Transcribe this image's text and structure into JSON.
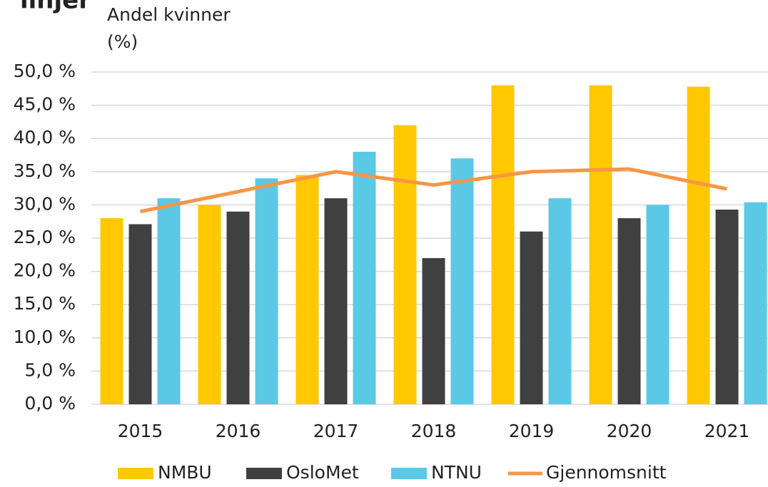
{
  "chart_data": {
    "type": "bar",
    "title": "linjer",
    "ylabel": [
      "Andel kvinner",
      "(%)"
    ],
    "categories": [
      "2015",
      "2016",
      "2017",
      "2018",
      "2019",
      "2020",
      "2021"
    ],
    "series": [
      {
        "name": "NMBU",
        "color": "#ffc800",
        "type": "bar",
        "values": [
          28,
          30,
          34.5,
          42,
          48,
          48,
          47.8
        ]
      },
      {
        "name": "OsloMet",
        "color": "#404040",
        "type": "bar",
        "values": [
          27.1,
          29,
          31,
          22,
          26,
          28,
          29.3
        ]
      },
      {
        "name": "NTNU",
        "color": "#5bc8e6",
        "type": "bar",
        "values": [
          31,
          34,
          38,
          37,
          31,
          30,
          30.4
        ]
      },
      {
        "name": "Gjennomsnitt",
        "color": "#f79646",
        "type": "line",
        "values": [
          29,
          32,
          35,
          33,
          35,
          35.4,
          32.4
        ]
      }
    ],
    "ylim": [
      0,
      50
    ],
    "yticks": [
      {
        "value": 0,
        "label": "0,0 %"
      },
      {
        "value": 5,
        "label": "5,0 %"
      },
      {
        "value": 10,
        "label": "10,0 %"
      },
      {
        "value": 15,
        "label": "15,0 %"
      },
      {
        "value": 20,
        "label": "20,0 %"
      },
      {
        "value": 25,
        "label": "25,0 %"
      },
      {
        "value": 30,
        "label": "30,0 %"
      },
      {
        "value": 35,
        "label": "35,0 %"
      },
      {
        "value": 40,
        "label": "40,0 %"
      },
      {
        "value": 45,
        "label": "45,0 %"
      },
      {
        "value": 50,
        "label": "50,0 %"
      }
    ],
    "grid": true,
    "legend": "bottom"
  }
}
